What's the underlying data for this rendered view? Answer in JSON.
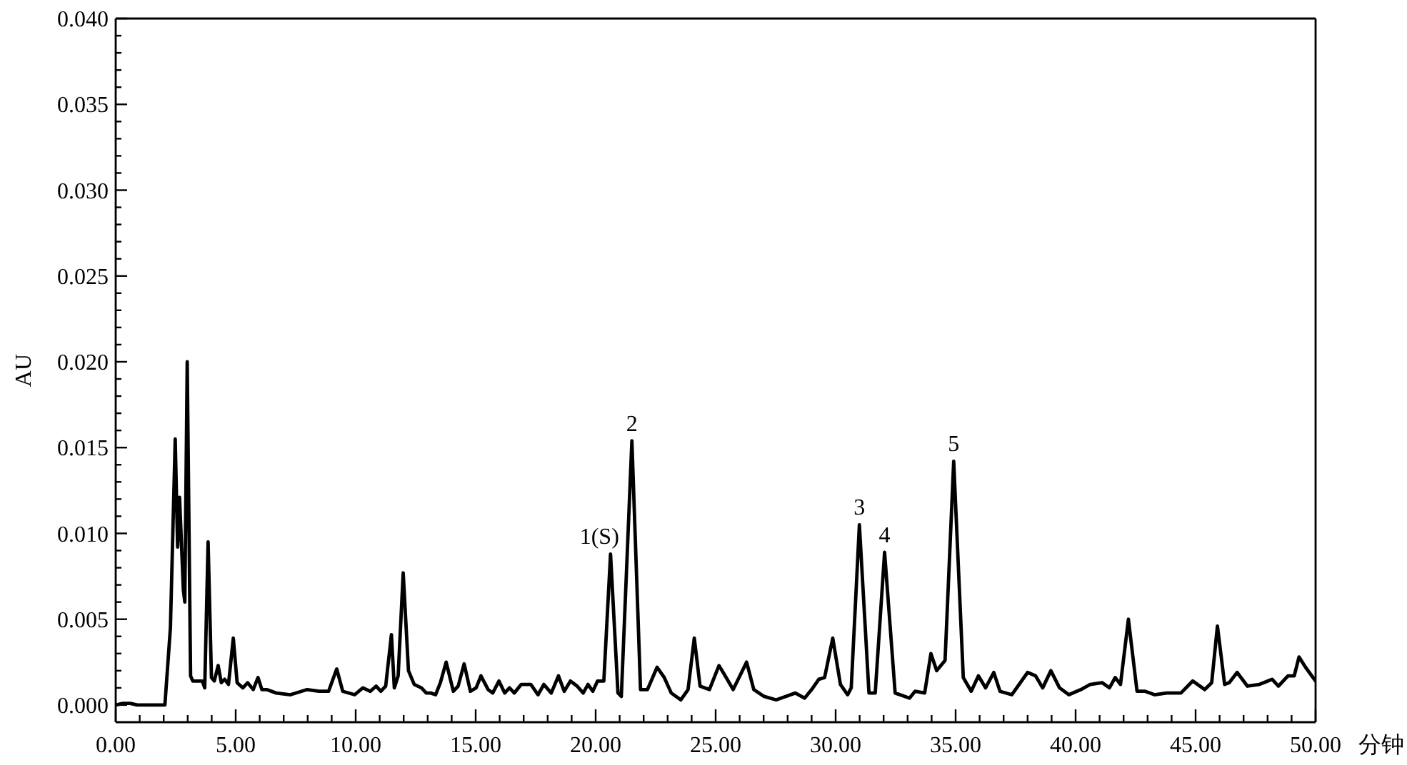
{
  "chart_data": {
    "type": "line",
    "xlabel": "分钟",
    "ylabel": "AU",
    "color": "#000000",
    "line_style": "solid",
    "xlim": [
      0,
      50
    ],
    "ylim": [
      -0.001,
      0.04
    ],
    "xticks": [
      {
        "value": 0,
        "label": "0.00"
      },
      {
        "value": 1,
        "label": null
      },
      {
        "value": 2,
        "label": null
      },
      {
        "value": 3,
        "label": null
      },
      {
        "value": 4,
        "label": null
      },
      {
        "value": 5,
        "label": "5.00"
      },
      {
        "value": 6,
        "label": null
      },
      {
        "value": 7,
        "label": null
      },
      {
        "value": 8,
        "label": null
      },
      {
        "value": 9,
        "label": null
      },
      {
        "value": 10,
        "label": "10.00"
      },
      {
        "value": 11,
        "label": null
      },
      {
        "value": 12,
        "label": null
      },
      {
        "value": 13,
        "label": null
      },
      {
        "value": 14,
        "label": null
      },
      {
        "value": 15,
        "label": "15.00"
      },
      {
        "value": 16,
        "label": null
      },
      {
        "value": 17,
        "label": null
      },
      {
        "value": 18,
        "label": null
      },
      {
        "value": 19,
        "label": null
      },
      {
        "value": 20,
        "label": "20.00"
      },
      {
        "value": 21,
        "label": null
      },
      {
        "value": 22,
        "label": null
      },
      {
        "value": 23,
        "label": null
      },
      {
        "value": 24,
        "label": null
      },
      {
        "value": 25,
        "label": "25.00"
      },
      {
        "value": 26,
        "label": null
      },
      {
        "value": 27,
        "label": null
      },
      {
        "value": 28,
        "label": null
      },
      {
        "value": 29,
        "label": null
      },
      {
        "value": 30,
        "label": "30.00"
      },
      {
        "value": 31,
        "label": null
      },
      {
        "value": 32,
        "label": null
      },
      {
        "value": 33,
        "label": null
      },
      {
        "value": 34,
        "label": null
      },
      {
        "value": 35,
        "label": "35.00"
      },
      {
        "value": 36,
        "label": null
      },
      {
        "value": 37,
        "label": null
      },
      {
        "value": 38,
        "label": null
      },
      {
        "value": 39,
        "label": null
      },
      {
        "value": 40,
        "label": "40.00"
      },
      {
        "value": 41,
        "label": null
      },
      {
        "value": 42,
        "label": null
      },
      {
        "value": 43,
        "label": null
      },
      {
        "value": 44,
        "label": null
      },
      {
        "value": 45,
        "label": "45.00"
      },
      {
        "value": 46,
        "label": null
      },
      {
        "value": 47,
        "label": null
      },
      {
        "value": 48,
        "label": null
      },
      {
        "value": 49,
        "label": null
      },
      {
        "value": 50,
        "label": "50.00"
      }
    ],
    "yticks": [
      {
        "value": 0,
        "label": "0.000"
      },
      {
        "value": 0.001,
        "label": null
      },
      {
        "value": 0.002,
        "label": null
      },
      {
        "value": 0.003,
        "label": null
      },
      {
        "value": 0.004,
        "label": null
      },
      {
        "value": 0.005,
        "label": "0.005"
      },
      {
        "value": 0.006,
        "label": null
      },
      {
        "value": 0.007,
        "label": null
      },
      {
        "value": 0.008,
        "label": null
      },
      {
        "value": 0.009,
        "label": null
      },
      {
        "value": 0.01,
        "label": "0.010"
      },
      {
        "value": 0.011,
        "label": null
      },
      {
        "value": 0.012,
        "label": null
      },
      {
        "value": 0.013,
        "label": null
      },
      {
        "value": 0.014,
        "label": null
      },
      {
        "value": 0.015,
        "label": "0.015"
      },
      {
        "value": 0.016,
        "label": null
      },
      {
        "value": 0.017,
        "label": null
      },
      {
        "value": 0.018,
        "label": null
      },
      {
        "value": 0.019,
        "label": null
      },
      {
        "value": 0.02,
        "label": "0.020"
      },
      {
        "value": 0.021,
        "label": null
      },
      {
        "value": 0.022,
        "label": null
      },
      {
        "value": 0.023,
        "label": null
      },
      {
        "value": 0.024,
        "label": null
      },
      {
        "value": 0.025,
        "label": "0.025"
      },
      {
        "value": 0.026,
        "label": null
      },
      {
        "value": 0.027,
        "label": null
      },
      {
        "value": 0.028,
        "label": null
      },
      {
        "value": 0.029,
        "label": null
      },
      {
        "value": 0.03,
        "label": "0.030"
      },
      {
        "value": 0.031,
        "label": null
      },
      {
        "value": 0.032,
        "label": null
      },
      {
        "value": 0.033,
        "label": null
      },
      {
        "value": 0.034,
        "label": null
      },
      {
        "value": 0.035,
        "label": "0.035"
      },
      {
        "value": 0.036,
        "label": null
      },
      {
        "value": 0.037,
        "label": null
      },
      {
        "value": 0.038,
        "label": null
      },
      {
        "value": 0.039,
        "label": null
      },
      {
        "value": 0.04,
        "label": "0.040"
      }
    ],
    "x": [
      0,
      0.3,
      0.6,
      0.9,
      2.05,
      2.28,
      2.48,
      2.58,
      2.66,
      2.82,
      2.88,
      2.98,
      3.12,
      3.21,
      3.61,
      3.71,
      3.85,
      3.99,
      4.11,
      4.27,
      4.4,
      4.54,
      4.7,
      4.9,
      5.06,
      5.3,
      5.5,
      5.73,
      5.93,
      6.09,
      6.29,
      6.69,
      7.28,
      7.98,
      8.47,
      8.87,
      9.21,
      9.46,
      9.96,
      10.3,
      10.61,
      10.85,
      11.05,
      11.25,
      11.49,
      11.61,
      11.77,
      11.98,
      12.2,
      12.44,
      12.74,
      12.94,
      13.13,
      13.33,
      13.53,
      13.77,
      14.07,
      14.27,
      14.52,
      14.78,
      15.02,
      15.22,
      15.52,
      15.71,
      15.97,
      16.21,
      16.41,
      16.61,
      16.9,
      17.3,
      17.6,
      17.84,
      18.15,
      18.45,
      18.69,
      18.95,
      19.23,
      19.48,
      19.68,
      19.88,
      20.08,
      20.34,
      20.62,
      20.93,
      21.07,
      21.51,
      21.87,
      22.16,
      22.56,
      22.86,
      23.15,
      23.55,
      23.85,
      24.11,
      24.35,
      24.74,
      25.14,
      25.44,
      25.73,
      26.29,
      26.59,
      27.02,
      27.52,
      27.92,
      28.32,
      28.71,
      29,
      29.3,
      29.54,
      29.88,
      30.2,
      30.5,
      30.65,
      30.99,
      31.39,
      31.65,
      32.04,
      32.48,
      33.08,
      33.31,
      33.71,
      33.97,
      34.21,
      34.56,
      34.92,
      35.32,
      35.65,
      35.95,
      36.25,
      36.59,
      36.85,
      37.34,
      38,
      38.33,
      38.63,
      38.97,
      39.33,
      39.72,
      40.22,
      40.61,
      41.11,
      41.41,
      41.65,
      41.87,
      42.2,
      42.56,
      42.9,
      43.29,
      43.79,
      44.39,
      44.88,
      45.38,
      45.67,
      45.91,
      46.21,
      46.4,
      46.73,
      47.16,
      47.66,
      48.19,
      48.45,
      48.85,
      49.11,
      49.31,
      49.58,
      50
    ],
    "values": [
      0,
      0.0001,
      0.0001,
      0,
      0,
      0.0045,
      0.0155,
      0.0092,
      0.0121,
      0.0067,
      0.006,
      0.02,
      0.0017,
      0.0014,
      0.0014,
      0.001,
      0.0095,
      0.0016,
      0.0014,
      0.0023,
      0.0013,
      0.0015,
      0.0012,
      0.0039,
      0.0013,
      0.001,
      0.0013,
      0.0009,
      0.0016,
      0.0009,
      0.0009,
      0.0007,
      0.0006,
      0.0009,
      0.0008,
      0.0008,
      0.0021,
      0.0008,
      0.0006,
      0.001,
      0.0008,
      0.0011,
      0.0008,
      0.0011,
      0.0041,
      0.001,
      0.0017,
      0.0077,
      0.002,
      0.0012,
      0.001,
      0.0007,
      0.0007,
      0.0006,
      0.0013,
      0.0025,
      0.0008,
      0.0011,
      0.0024,
      0.0008,
      0.001,
      0.0017,
      0.0009,
      0.0007,
      0.0014,
      0.0007,
      0.001,
      0.0007,
      0.0012,
      0.0012,
      0.0006,
      0.0012,
      0.0007,
      0.0017,
      0.0008,
      0.0014,
      0.0011,
      0.0007,
      0.0012,
      0.0008,
      0.0014,
      0.0014,
      0.0088,
      0.0007,
      0.0005,
      0.0154,
      0.0009,
      0.0009,
      0.0022,
      0.0016,
      0.0007,
      0.0003,
      0.0009,
      0.0039,
      0.0011,
      0.0009,
      0.0023,
      0.0016,
      0.0009,
      0.0025,
      0.0009,
      0.0005,
      0.0003,
      0.0005,
      0.0007,
      0.0004,
      0.0009,
      0.0015,
      0.0016,
      0.0039,
      0.0012,
      0.0006,
      0.001,
      0.0105,
      0.0007,
      0.0007,
      0.0089,
      0.0007,
      0.0004,
      0.0008,
      0.0007,
      0.003,
      0.002,
      0.0026,
      0.0142,
      0.0016,
      0.0008,
      0.0017,
      0.001,
      0.0019,
      0.0008,
      0.0006,
      0.0019,
      0.0017,
      0.001,
      0.002,
      0.001,
      0.0006,
      0.0009,
      0.0012,
      0.0013,
      0.001,
      0.0016,
      0.0012,
      0.005,
      0.0008,
      0.0008,
      0.0006,
      0.0007,
      0.0007,
      0.0014,
      0.0009,
      0.0013,
      0.0046,
      0.0012,
      0.0013,
      0.0019,
      0.0011,
      0.0012,
      0.0015,
      0.0011,
      0.0017,
      0.0017,
      0.0028,
      0.0022,
      0.0014
    ],
    "annotations": [
      {
        "text": "1(S)",
        "x": 20.62,
        "y": 0.0088
      },
      {
        "text": "2",
        "x": 21.51,
        "y": 0.0154
      },
      {
        "text": "3",
        "x": 30.99,
        "y": 0.0105
      },
      {
        "text": "4",
        "x": 32.04,
        "y": 0.0089
      },
      {
        "text": "5",
        "x": 34.92,
        "y": 0.0142
      }
    ]
  }
}
